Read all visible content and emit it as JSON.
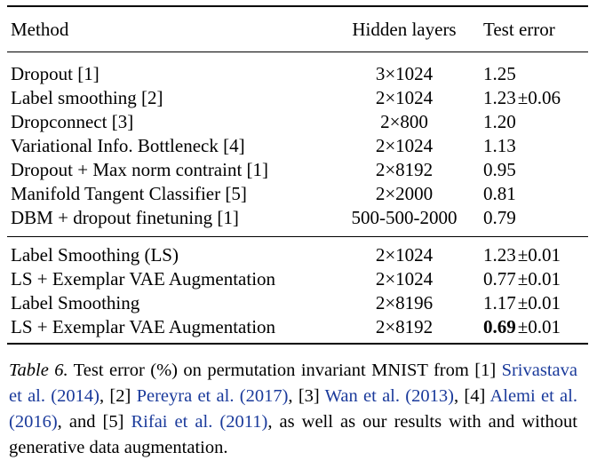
{
  "table": {
    "headers": [
      "Method",
      "Hidden layers",
      "Test error"
    ],
    "group1": [
      {
        "method": "Dropout [1]",
        "layers": "3×1024",
        "error": "1.25",
        "pm": ""
      },
      {
        "method": "Label smoothing [2]",
        "layers": "2×1024",
        "error": "1.23",
        "pm": "±0.06"
      },
      {
        "method": "Dropconnect [3]",
        "layers": "2×800",
        "error": "1.20",
        "pm": ""
      },
      {
        "method": "Variational Info. Bottleneck [4]",
        "layers": "2×1024",
        "error": "1.13",
        "pm": ""
      },
      {
        "method": "Dropout + Max norm contraint [1]",
        "layers": "2×8192",
        "error": "0.95",
        "pm": ""
      },
      {
        "method": "Manifold Tangent Classifier [5]",
        "layers": "2×2000",
        "error": "0.81",
        "pm": ""
      },
      {
        "method": "DBM + dropout finetuning [1]",
        "layers": "500-500-2000",
        "error": "0.79",
        "pm": ""
      }
    ],
    "group2": [
      {
        "method": "Label Smoothing (LS)",
        "layers": "2×1024",
        "error": "1.23",
        "pm": "±0.01"
      },
      {
        "method": "LS + Exemplar VAE Augmentation",
        "layers": "2×1024",
        "error": "0.77",
        "pm": "±0.01"
      },
      {
        "method": "Label Smoothing",
        "layers": "2×8196",
        "error": "1.17",
        "pm": "±0.01"
      },
      {
        "method": "LS + Exemplar VAE Augmentation",
        "layers": "2×8192",
        "error": "0.69",
        "pm": "±0.01"
      }
    ]
  },
  "caption": {
    "label": "Table 6.",
    "t1": " Test error (%) on permutation invariant MNIST from [1] ",
    "c1": "Srivastava et al. (2014)",
    "t2": ", [2] ",
    "c2": "Pereyra et al. (2017)",
    "t3": ", [3] ",
    "c3": "Wan et al. (2013)",
    "t4": ", [4] ",
    "c4": "Alemi et al. (2016)",
    "t5": ", and [5] ",
    "c5": "Rifai et al. (2011)",
    "t6": ", as well as our results with and without generative data augmentation."
  }
}
